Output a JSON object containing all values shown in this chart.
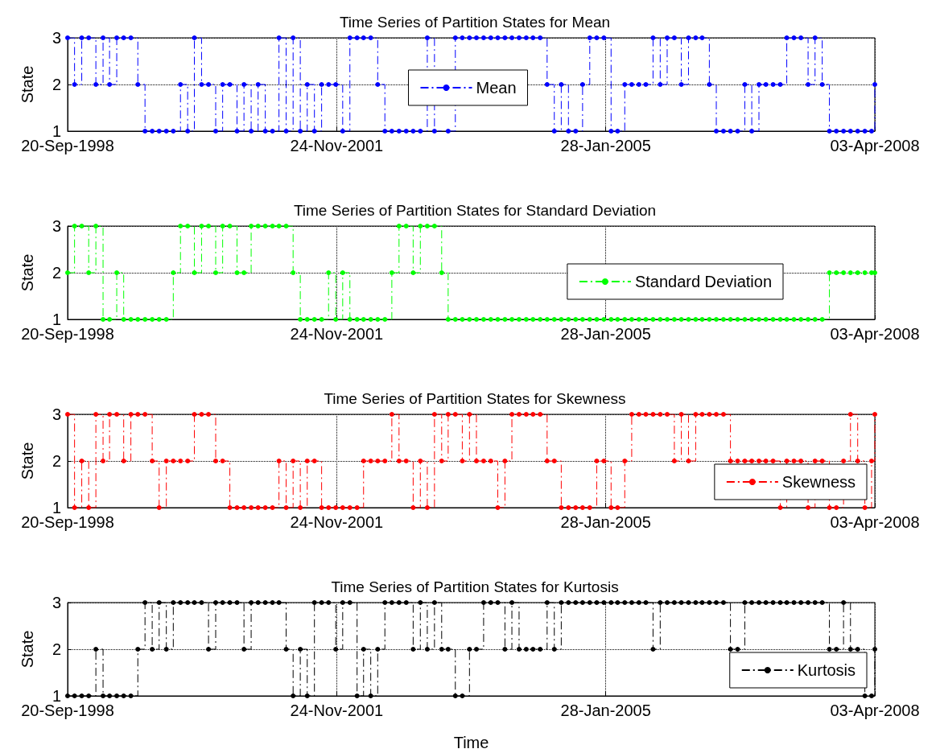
{
  "chart_data": [
    {
      "type": "step",
      "title": "Time Series of Partition States for Mean",
      "ylabel": "State",
      "xlim": [
        "1998-09-20",
        "2008-04-03"
      ],
      "xticks": [
        {
          "value": "1998-09-20",
          "label": "20-Sep-1998"
        },
        {
          "value": "2001-11-24",
          "label": "24-Nov-2001"
        },
        {
          "value": "2005-01-28",
          "label": "28-Jan-2005"
        },
        {
          "value": "2008-04-03",
          "label": "03-Apr-2008"
        }
      ],
      "ylim": [
        1,
        3
      ],
      "yticks": [
        1,
        2,
        3
      ],
      "grid": true,
      "legend": "center",
      "marker": "circle",
      "line_style": "dashed",
      "x": [
        "1998-09-20",
        "1998-10-20",
        "1998-11-20",
        "1998-12-20",
        "1999-01-20",
        "1999-02-20",
        "1999-03-20",
        "1999-04-20",
        "1999-05-20",
        "1999-06-20",
        "1999-07-20",
        "1999-08-20",
        "1999-09-20",
        "1999-10-20",
        "1999-11-20",
        "1999-12-20",
        "2000-01-20",
        "2000-02-20",
        "2000-03-20",
        "2000-04-20",
        "2000-05-20",
        "2000-06-20",
        "2000-07-20",
        "2000-08-20",
        "2000-09-20",
        "2000-10-20",
        "2000-11-20",
        "2000-12-20",
        "2001-01-20",
        "2001-02-20",
        "2001-03-20",
        "2001-04-20",
        "2001-05-20",
        "2001-06-20",
        "2001-07-20",
        "2001-08-20",
        "2001-09-20",
        "2001-10-20",
        "2001-11-20",
        "2001-12-20",
        "2002-01-20",
        "2002-02-20",
        "2002-03-20",
        "2002-04-20",
        "2002-05-20",
        "2002-06-20",
        "2002-07-20",
        "2002-08-20",
        "2002-09-20",
        "2002-10-20",
        "2002-11-20",
        "2002-12-20",
        "2003-01-20",
        "2003-02-20",
        "2003-03-20",
        "2003-04-20",
        "2003-05-20",
        "2003-06-20",
        "2003-07-20",
        "2003-08-20",
        "2003-09-20",
        "2003-10-20",
        "2003-11-20",
        "2003-12-20",
        "2004-01-20",
        "2004-02-20",
        "2004-03-20",
        "2004-04-20",
        "2004-05-20",
        "2004-06-20",
        "2004-07-20",
        "2004-08-20",
        "2004-09-20",
        "2004-10-20",
        "2004-11-20",
        "2004-12-20",
        "2005-01-20",
        "2005-02-20",
        "2005-03-20",
        "2005-04-20",
        "2005-05-20",
        "2005-06-20",
        "2005-07-20",
        "2005-08-20",
        "2005-09-20",
        "2005-10-20",
        "2005-11-20",
        "2005-12-20",
        "2006-01-20",
        "2006-02-20",
        "2006-03-20",
        "2006-04-20",
        "2006-05-20",
        "2006-06-20",
        "2006-07-20",
        "2006-08-20",
        "2006-09-20",
        "2006-10-20",
        "2006-11-20",
        "2006-12-20",
        "2007-01-20",
        "2007-02-20",
        "2007-03-20",
        "2007-04-20",
        "2007-05-20",
        "2007-06-20",
        "2007-07-20",
        "2007-08-20",
        "2007-09-20",
        "2007-10-20",
        "2007-11-20",
        "2007-12-20",
        "2008-01-20",
        "2008-02-20",
        "2008-03-20",
        "2008-04-03"
      ],
      "series": [
        {
          "name": "Mean",
          "color": "#0000ff",
          "values": [
            3,
            2,
            3,
            3,
            2,
            3,
            2,
            3,
            3,
            3,
            2,
            1,
            1,
            1,
            1,
            1,
            2,
            1,
            3,
            2,
            2,
            1,
            2,
            2,
            1,
            2,
            1,
            2,
            1,
            1,
            3,
            1,
            3,
            1,
            2,
            1,
            2,
            2,
            2,
            1,
            3,
            3,
            3,
            3,
            2,
            1,
            1,
            1,
            1,
            1,
            1,
            3,
            1,
            null,
            1,
            3,
            3,
            3,
            3,
            3,
            3,
            3,
            3,
            3,
            3,
            3,
            3,
            3,
            2,
            1,
            2,
            1,
            1,
            2,
            3,
            3,
            3,
            1,
            1,
            2,
            2,
            2,
            2,
            3,
            2,
            3,
            3,
            2,
            3,
            3,
            3,
            2,
            1,
            1,
            1,
            1,
            2,
            1,
            2,
            2,
            2,
            2,
            3,
            3,
            3,
            2,
            3,
            2,
            1,
            1,
            1,
            1,
            1,
            1,
            1,
            2
          ]
        }
      ]
    },
    {
      "type": "step",
      "title": "Time Series of Partition States for Standard Deviation",
      "ylabel": "State",
      "xlim": [
        "1998-09-20",
        "2008-04-03"
      ],
      "xticks": [
        {
          "value": "1998-09-20",
          "label": "20-Sep-1998"
        },
        {
          "value": "2001-11-24",
          "label": "24-Nov-2001"
        },
        {
          "value": "2005-01-28",
          "label": "28-Jan-2005"
        },
        {
          "value": "2008-04-03",
          "label": "03-Apr-2008"
        }
      ],
      "ylim": [
        1,
        3
      ],
      "yticks": [
        1,
        2,
        3
      ],
      "grid": true,
      "legend": "right",
      "marker": "circle",
      "line_style": "dashed",
      "x": [
        "1998-09-20",
        "1998-10-20",
        "1998-11-20",
        "1998-12-20",
        "1999-01-20",
        "1999-02-20",
        "1999-03-20",
        "1999-04-20",
        "1999-05-20",
        "1999-06-20",
        "1999-07-20",
        "1999-08-20",
        "1999-09-20",
        "1999-10-20",
        "1999-11-20",
        "1999-12-20",
        "2000-01-20",
        "2000-02-20",
        "2000-03-20",
        "2000-04-20",
        "2000-05-20",
        "2000-06-20",
        "2000-07-20",
        "2000-08-20",
        "2000-09-20",
        "2000-10-20",
        "2000-11-20",
        "2000-12-20",
        "2001-01-20",
        "2001-02-20",
        "2001-03-20",
        "2001-04-20",
        "2001-05-20",
        "2001-06-20",
        "2001-07-20",
        "2001-08-20",
        "2001-09-20",
        "2001-10-20",
        "2001-11-20",
        "2001-12-20",
        "2002-01-20",
        "2002-02-20",
        "2002-03-20",
        "2002-04-20",
        "2002-05-20",
        "2002-06-20",
        "2002-07-20",
        "2002-08-20",
        "2002-09-20",
        "2002-10-20",
        "2002-11-20",
        "2002-12-20",
        "2003-01-20",
        "2003-02-20",
        "2003-03-20",
        "2003-04-20",
        "2003-05-20",
        "2003-06-20",
        "2003-07-20",
        "2003-08-20",
        "2003-09-20",
        "2003-10-20",
        "2003-11-20",
        "2003-12-20",
        "2004-01-20",
        "2004-02-20",
        "2004-03-20",
        "2004-04-20",
        "2004-05-20",
        "2004-06-20",
        "2004-07-20",
        "2004-08-20",
        "2004-09-20",
        "2004-10-20",
        "2004-11-20",
        "2004-12-20",
        "2005-01-20",
        "2005-02-20",
        "2005-03-20",
        "2005-04-20",
        "2005-05-20",
        "2005-06-20",
        "2005-07-20",
        "2005-08-20",
        "2005-09-20",
        "2005-10-20",
        "2005-11-20",
        "2005-12-20",
        "2006-01-20",
        "2006-02-20",
        "2006-03-20",
        "2006-04-20",
        "2006-05-20",
        "2006-06-20",
        "2006-07-20",
        "2006-08-20",
        "2006-09-20",
        "2006-10-20",
        "2006-11-20",
        "2006-12-20",
        "2007-01-20",
        "2007-02-20",
        "2007-03-20",
        "2007-04-20",
        "2007-05-20",
        "2007-06-20",
        "2007-07-20",
        "2007-08-20",
        "2007-09-20",
        "2007-10-20",
        "2007-11-20",
        "2007-12-20",
        "2008-01-20",
        "2008-02-20",
        "2008-03-20",
        "2008-04-03"
      ],
      "series": [
        {
          "name": "Standard Deviation",
          "color": "#00ff00",
          "values": [
            2,
            3,
            3,
            2,
            3,
            1,
            1,
            2,
            1,
            1,
            1,
            1,
            1,
            1,
            1,
            2,
            3,
            3,
            2,
            3,
            3,
            2,
            3,
            3,
            2,
            2,
            3,
            3,
            3,
            3,
            3,
            3,
            2,
            1,
            1,
            1,
            1,
            2,
            1,
            2,
            1,
            1,
            1,
            1,
            1,
            1,
            2,
            3,
            3,
            2,
            3,
            3,
            3,
            2,
            1,
            1,
            1,
            1,
            1,
            1,
            1,
            1,
            1,
            1,
            1,
            1,
            1,
            1,
            1,
            1,
            1,
            1,
            1,
            1,
            1,
            1,
            1,
            1,
            1,
            1,
            1,
            1,
            1,
            1,
            1,
            1,
            1,
            1,
            1,
            1,
            1,
            1,
            1,
            1,
            1,
            1,
            1,
            1,
            1,
            1,
            1,
            1,
            1,
            1,
            1,
            1,
            1,
            1,
            2,
            2,
            2,
            2,
            2,
            2,
            2,
            2
          ]
        }
      ]
    },
    {
      "type": "step",
      "title": "Time Series of Partition States for Skewness",
      "ylabel": "State",
      "xlim": [
        "1998-09-20",
        "2008-04-03"
      ],
      "xticks": [
        {
          "value": "1998-09-20",
          "label": "20-Sep-1998"
        },
        {
          "value": "2001-11-24",
          "label": "24-Nov-2001"
        },
        {
          "value": "2005-01-28",
          "label": "28-Jan-2005"
        },
        {
          "value": "2008-04-03",
          "label": "03-Apr-2008"
        }
      ],
      "ylim": [
        1,
        3
      ],
      "yticks": [
        1,
        2,
        3
      ],
      "grid": true,
      "legend": "bottom right",
      "marker": "circle",
      "line_style": "dashed",
      "x": [
        "1998-09-20",
        "1998-10-20",
        "1998-11-20",
        "1998-12-20",
        "1999-01-20",
        "1999-02-20",
        "1999-03-20",
        "1999-04-20",
        "1999-05-20",
        "1999-06-20",
        "1999-07-20",
        "1999-08-20",
        "1999-09-20",
        "1999-10-20",
        "1999-11-20",
        "1999-12-20",
        "2000-01-20",
        "2000-02-20",
        "2000-03-20",
        "2000-04-20",
        "2000-05-20",
        "2000-06-20",
        "2000-07-20",
        "2000-08-20",
        "2000-09-20",
        "2000-10-20",
        "2000-11-20",
        "2000-12-20",
        "2001-01-20",
        "2001-02-20",
        "2001-03-20",
        "2001-04-20",
        "2001-05-20",
        "2001-06-20",
        "2001-07-20",
        "2001-08-20",
        "2001-09-20",
        "2001-10-20",
        "2001-11-20",
        "2001-12-20",
        "2002-01-20",
        "2002-02-20",
        "2002-03-20",
        "2002-04-20",
        "2002-05-20",
        "2002-06-20",
        "2002-07-20",
        "2002-08-20",
        "2002-09-20",
        "2002-10-20",
        "2002-11-20",
        "2002-12-20",
        "2003-01-20",
        "2003-02-20",
        "2003-03-20",
        "2003-04-20",
        "2003-05-20",
        "2003-06-20",
        "2003-07-20",
        "2003-08-20",
        "2003-09-20",
        "2003-10-20",
        "2003-11-20",
        "2003-12-20",
        "2004-01-20",
        "2004-02-20",
        "2004-03-20",
        "2004-04-20",
        "2004-05-20",
        "2004-06-20",
        "2004-07-20",
        "2004-08-20",
        "2004-09-20",
        "2004-10-20",
        "2004-11-20",
        "2004-12-20",
        "2005-01-20",
        "2005-02-20",
        "2005-03-20",
        "2005-04-20",
        "2005-05-20",
        "2005-06-20",
        "2005-07-20",
        "2005-08-20",
        "2005-09-20",
        "2005-10-20",
        "2005-11-20",
        "2005-12-20",
        "2006-01-20",
        "2006-02-20",
        "2006-03-20",
        "2006-04-20",
        "2006-05-20",
        "2006-06-20",
        "2006-07-20",
        "2006-08-20",
        "2006-09-20",
        "2006-10-20",
        "2006-11-20",
        "2006-12-20",
        "2007-01-20",
        "2007-02-20",
        "2007-03-20",
        "2007-04-20",
        "2007-05-20",
        "2007-06-20",
        "2007-07-20",
        "2007-08-20",
        "2007-09-20",
        "2007-10-20",
        "2007-11-20",
        "2007-12-20",
        "2008-01-20",
        "2008-02-20",
        "2008-03-20",
        "2008-04-03"
      ],
      "series": [
        {
          "name": "Skewness",
          "color": "#ff0000",
          "values": [
            3,
            1,
            2,
            1,
            3,
            2,
            3,
            3,
            2,
            3,
            3,
            3,
            2,
            1,
            2,
            2,
            2,
            2,
            3,
            3,
            3,
            2,
            2,
            1,
            1,
            1,
            1,
            1,
            1,
            1,
            2,
            1,
            2,
            1,
            2,
            2,
            1,
            1,
            1,
            1,
            1,
            1,
            2,
            2,
            2,
            2,
            3,
            2,
            2,
            1,
            2,
            1,
            3,
            2,
            3,
            3,
            2,
            3,
            2,
            2,
            2,
            1,
            2,
            3,
            3,
            3,
            3,
            3,
            2,
            2,
            1,
            1,
            1,
            1,
            1,
            2,
            2,
            1,
            1,
            2,
            3,
            3,
            3,
            3,
            3,
            3,
            2,
            3,
            2,
            3,
            3,
            3,
            3,
            3,
            2,
            2,
            2,
            2,
            2,
            2,
            2,
            1,
            2,
            2,
            2,
            1,
            2,
            2,
            1,
            1,
            2,
            3,
            2,
            1,
            2,
            3
          ]
        }
      ]
    },
    {
      "type": "step",
      "title": "Time Series of Partition States for Kurtosis",
      "xlabel": "Time",
      "ylabel": "State",
      "xlim": [
        "1998-09-20",
        "2008-04-03"
      ],
      "xticks": [
        {
          "value": "1998-09-20",
          "label": "20-Sep-1998"
        },
        {
          "value": "2001-11-24",
          "label": "24-Nov-2001"
        },
        {
          "value": "2005-01-28",
          "label": "28-Jan-2005"
        },
        {
          "value": "2008-04-03",
          "label": "03-Apr-2008"
        }
      ],
      "ylim": [
        1,
        3
      ],
      "yticks": [
        1,
        2,
        3
      ],
      "grid": true,
      "legend": "bottom right",
      "marker": "circle",
      "line_style": "dashed",
      "x": [
        "1998-09-20",
        "1998-10-20",
        "1998-11-20",
        "1998-12-20",
        "1999-01-20",
        "1999-02-20",
        "1999-03-20",
        "1999-04-20",
        "1999-05-20",
        "1999-06-20",
        "1999-07-20",
        "1999-08-20",
        "1999-09-20",
        "1999-10-20",
        "1999-11-20",
        "1999-12-20",
        "2000-01-20",
        "2000-02-20",
        "2000-03-20",
        "2000-04-20",
        "2000-05-20",
        "2000-06-20",
        "2000-07-20",
        "2000-08-20",
        "2000-09-20",
        "2000-10-20",
        "2000-11-20",
        "2000-12-20",
        "2001-01-20",
        "2001-02-20",
        "2001-03-20",
        "2001-04-20",
        "2001-05-20",
        "2001-06-20",
        "2001-07-20",
        "2001-08-20",
        "2001-09-20",
        "2001-10-20",
        "2001-11-20",
        "2001-12-20",
        "2002-01-20",
        "2002-02-20",
        "2002-03-20",
        "2002-04-20",
        "2002-05-20",
        "2002-06-20",
        "2002-07-20",
        "2002-08-20",
        "2002-09-20",
        "2002-10-20",
        "2002-11-20",
        "2002-12-20",
        "2003-01-20",
        "2003-02-20",
        "2003-03-20",
        "2003-04-20",
        "2003-05-20",
        "2003-06-20",
        "2003-07-20",
        "2003-08-20",
        "2003-09-20",
        "2003-10-20",
        "2003-11-20",
        "2003-12-20",
        "2004-01-20",
        "2004-02-20",
        "2004-03-20",
        "2004-04-20",
        "2004-05-20",
        "2004-06-20",
        "2004-07-20",
        "2004-08-20",
        "2004-09-20",
        "2004-10-20",
        "2004-11-20",
        "2004-12-20",
        "2005-01-20",
        "2005-02-20",
        "2005-03-20",
        "2005-04-20",
        "2005-05-20",
        "2005-06-20",
        "2005-07-20",
        "2005-08-20",
        "2005-09-20",
        "2005-10-20",
        "2005-11-20",
        "2005-12-20",
        "2006-01-20",
        "2006-02-20",
        "2006-03-20",
        "2006-04-20",
        "2006-05-20",
        "2006-06-20",
        "2006-07-20",
        "2006-08-20",
        "2006-09-20",
        "2006-10-20",
        "2006-11-20",
        "2006-12-20",
        "2007-01-20",
        "2007-02-20",
        "2007-03-20",
        "2007-04-20",
        "2007-05-20",
        "2007-06-20",
        "2007-07-20",
        "2007-08-20",
        "2007-09-20",
        "2007-10-20",
        "2007-11-20",
        "2007-12-20",
        "2008-01-20",
        "2008-02-20",
        "2008-03-20",
        "2008-04-03"
      ],
      "series": [
        {
          "name": "Kurtosis",
          "color": "#000000",
          "values": [
            1,
            1,
            1,
            1,
            2,
            1,
            1,
            1,
            1,
            1,
            2,
            3,
            2,
            3,
            2,
            3,
            3,
            3,
            3,
            3,
            2,
            3,
            3,
            3,
            3,
            2,
            3,
            3,
            3,
            3,
            3,
            2,
            1,
            2,
            1,
            3,
            3,
            3,
            2,
            3,
            3,
            1,
            2,
            1,
            2,
            3,
            3,
            3,
            3,
            2,
            3,
            2,
            3,
            2,
            2,
            1,
            1,
            2,
            2,
            3,
            3,
            3,
            2,
            3,
            2,
            2,
            2,
            2,
            3,
            2,
            3,
            3,
            3,
            3,
            3,
            3,
            3,
            3,
            3,
            3,
            3,
            3,
            3,
            2,
            3,
            3,
            3,
            3,
            3,
            3,
            3,
            3,
            3,
            3,
            2,
            2,
            3,
            3,
            3,
            3,
            3,
            3,
            3,
            3,
            3,
            3,
            3,
            3,
            2,
            2,
            3,
            2,
            2,
            1,
            1,
            2
          ]
        }
      ]
    }
  ]
}
